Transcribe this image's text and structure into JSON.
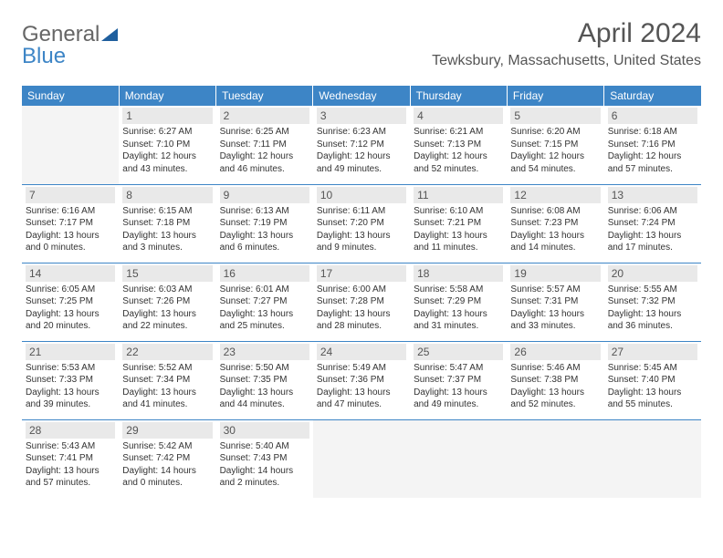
{
  "logo": {
    "part1": "General",
    "part2": "Blue"
  },
  "title": "April 2024",
  "location": "Tewksbury, Massachusetts, United States",
  "colors": {
    "header_bg": "#3d85c6",
    "header_text": "#ffffff",
    "daynum_bg": "#e9e9e9",
    "border": "#3d85c6",
    "empty_bg": "#f4f4f4",
    "text": "#333333"
  },
  "day_headers": [
    "Sunday",
    "Monday",
    "Tuesday",
    "Wednesday",
    "Thursday",
    "Friday",
    "Saturday"
  ],
  "weeks": [
    [
      null,
      {
        "n": "1",
        "sr": "6:27 AM",
        "ss": "7:10 PM",
        "dl": "12 hours and 43 minutes."
      },
      {
        "n": "2",
        "sr": "6:25 AM",
        "ss": "7:11 PM",
        "dl": "12 hours and 46 minutes."
      },
      {
        "n": "3",
        "sr": "6:23 AM",
        "ss": "7:12 PM",
        "dl": "12 hours and 49 minutes."
      },
      {
        "n": "4",
        "sr": "6:21 AM",
        "ss": "7:13 PM",
        "dl": "12 hours and 52 minutes."
      },
      {
        "n": "5",
        "sr": "6:20 AM",
        "ss": "7:15 PM",
        "dl": "12 hours and 54 minutes."
      },
      {
        "n": "6",
        "sr": "6:18 AM",
        "ss": "7:16 PM",
        "dl": "12 hours and 57 minutes."
      }
    ],
    [
      {
        "n": "7",
        "sr": "6:16 AM",
        "ss": "7:17 PM",
        "dl": "13 hours and 0 minutes."
      },
      {
        "n": "8",
        "sr": "6:15 AM",
        "ss": "7:18 PM",
        "dl": "13 hours and 3 minutes."
      },
      {
        "n": "9",
        "sr": "6:13 AM",
        "ss": "7:19 PM",
        "dl": "13 hours and 6 minutes."
      },
      {
        "n": "10",
        "sr": "6:11 AM",
        "ss": "7:20 PM",
        "dl": "13 hours and 9 minutes."
      },
      {
        "n": "11",
        "sr": "6:10 AM",
        "ss": "7:21 PM",
        "dl": "13 hours and 11 minutes."
      },
      {
        "n": "12",
        "sr": "6:08 AM",
        "ss": "7:23 PM",
        "dl": "13 hours and 14 minutes."
      },
      {
        "n": "13",
        "sr": "6:06 AM",
        "ss": "7:24 PM",
        "dl": "13 hours and 17 minutes."
      }
    ],
    [
      {
        "n": "14",
        "sr": "6:05 AM",
        "ss": "7:25 PM",
        "dl": "13 hours and 20 minutes."
      },
      {
        "n": "15",
        "sr": "6:03 AM",
        "ss": "7:26 PM",
        "dl": "13 hours and 22 minutes."
      },
      {
        "n": "16",
        "sr": "6:01 AM",
        "ss": "7:27 PM",
        "dl": "13 hours and 25 minutes."
      },
      {
        "n": "17",
        "sr": "6:00 AM",
        "ss": "7:28 PM",
        "dl": "13 hours and 28 minutes."
      },
      {
        "n": "18",
        "sr": "5:58 AM",
        "ss": "7:29 PM",
        "dl": "13 hours and 31 minutes."
      },
      {
        "n": "19",
        "sr": "5:57 AM",
        "ss": "7:31 PM",
        "dl": "13 hours and 33 minutes."
      },
      {
        "n": "20",
        "sr": "5:55 AM",
        "ss": "7:32 PM",
        "dl": "13 hours and 36 minutes."
      }
    ],
    [
      {
        "n": "21",
        "sr": "5:53 AM",
        "ss": "7:33 PM",
        "dl": "13 hours and 39 minutes."
      },
      {
        "n": "22",
        "sr": "5:52 AM",
        "ss": "7:34 PM",
        "dl": "13 hours and 41 minutes."
      },
      {
        "n": "23",
        "sr": "5:50 AM",
        "ss": "7:35 PM",
        "dl": "13 hours and 44 minutes."
      },
      {
        "n": "24",
        "sr": "5:49 AM",
        "ss": "7:36 PM",
        "dl": "13 hours and 47 minutes."
      },
      {
        "n": "25",
        "sr": "5:47 AM",
        "ss": "7:37 PM",
        "dl": "13 hours and 49 minutes."
      },
      {
        "n": "26",
        "sr": "5:46 AM",
        "ss": "7:38 PM",
        "dl": "13 hours and 52 minutes."
      },
      {
        "n": "27",
        "sr": "5:45 AM",
        "ss": "7:40 PM",
        "dl": "13 hours and 55 minutes."
      }
    ],
    [
      {
        "n": "28",
        "sr": "5:43 AM",
        "ss": "7:41 PM",
        "dl": "13 hours and 57 minutes."
      },
      {
        "n": "29",
        "sr": "5:42 AM",
        "ss": "7:42 PM",
        "dl": "14 hours and 0 minutes."
      },
      {
        "n": "30",
        "sr": "5:40 AM",
        "ss": "7:43 PM",
        "dl": "14 hours and 2 minutes."
      },
      null,
      null,
      null,
      null
    ]
  ],
  "labels": {
    "sunrise": "Sunrise:",
    "sunset": "Sunset:",
    "daylight": "Daylight:"
  }
}
